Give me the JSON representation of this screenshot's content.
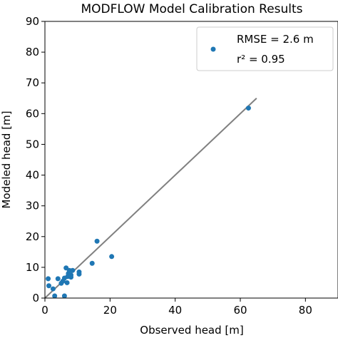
{
  "chart_data": {
    "type": "scatter",
    "title": "MODFLOW Model Calibration Results",
    "xlabel": "Observed head [m]",
    "ylabel": "Modeled head [m]",
    "xlim": [
      0,
      90
    ],
    "ylim": [
      0,
      90
    ],
    "xticks": [
      0,
      20,
      40,
      60,
      80
    ],
    "yticks": [
      0,
      10,
      20,
      30,
      40,
      50,
      60,
      70,
      80,
      90
    ],
    "grid": false,
    "legend_position": "top-right",
    "legend": {
      "entry_lines": [
        "RMSE = 2.6 m",
        "r² = 0.95"
      ]
    },
    "colors": {
      "points": "#1f77b4",
      "fit_line": "#808080",
      "axes": "#000000"
    },
    "fit_line": {
      "x": [
        0,
        65
      ],
      "y": [
        0,
        65
      ]
    },
    "points": [
      {
        "x": 1.0,
        "y": 6.3
      },
      {
        "x": 1.2,
        "y": 4.0
      },
      {
        "x": 2.5,
        "y": 3.0
      },
      {
        "x": 3.0,
        "y": 0.7
      },
      {
        "x": 4.0,
        "y": 6.3
      },
      {
        "x": 5.0,
        "y": 4.8
      },
      {
        "x": 5.5,
        "y": 5.5
      },
      {
        "x": 6.0,
        "y": 6.5
      },
      {
        "x": 6.0,
        "y": 0.7
      },
      {
        "x": 6.5,
        "y": 9.8
      },
      {
        "x": 6.8,
        "y": 5.0
      },
      {
        "x": 7.0,
        "y": 7.0
      },
      {
        "x": 7.2,
        "y": 8.0
      },
      {
        "x": 7.5,
        "y": 9.0
      },
      {
        "x": 8.0,
        "y": 7.5
      },
      {
        "x": 8.0,
        "y": 6.8
      },
      {
        "x": 8.5,
        "y": 9.0
      },
      {
        "x": 10.5,
        "y": 8.5
      },
      {
        "x": 10.5,
        "y": 7.8
      },
      {
        "x": 14.5,
        "y": 11.3
      },
      {
        "x": 16.0,
        "y": 18.5
      },
      {
        "x": 20.5,
        "y": 13.5
      },
      {
        "x": 62.5,
        "y": 61.8
      }
    ]
  }
}
